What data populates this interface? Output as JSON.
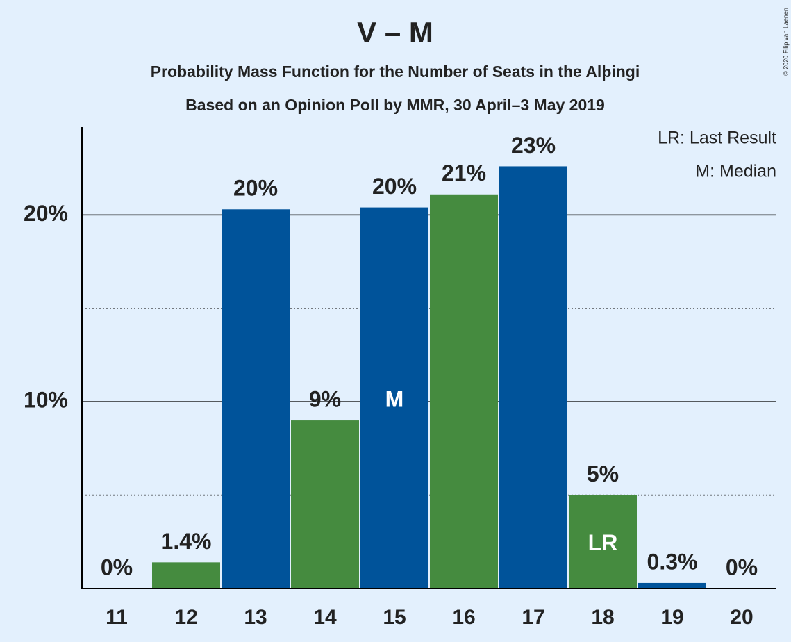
{
  "chart_data": {
    "type": "bar",
    "title": "V – M",
    "subtitle": "Probability Mass Function for the Number of Seats in the Alþingi",
    "subtitle2": "Based on an Opinion Poll by MMR, 30 April–3 May 2019",
    "categories": [
      "11",
      "12",
      "13",
      "14",
      "15",
      "16",
      "17",
      "18",
      "19",
      "20"
    ],
    "values": [
      0,
      1.4,
      20.3,
      9,
      20.4,
      21.1,
      22.6,
      5,
      0.3,
      0
    ],
    "value_labels": [
      "0%",
      "1.4%",
      "20%",
      "9%",
      "20%",
      "21%",
      "23%",
      "5%",
      "0.3%",
      "0%"
    ],
    "bar_labels": [
      null,
      null,
      null,
      null,
      "M",
      null,
      null,
      "LR",
      null,
      null
    ],
    "colors": [
      "#00539a",
      "#458b3f",
      "#00539a",
      "#458b3f",
      "#00539a",
      "#458b3f",
      "#00539a",
      "#458b3f",
      "#00539a",
      "#458b3f"
    ],
    "ylim": [
      0,
      24.7
    ],
    "yticks": [
      {
        "value": 10,
        "label": "10%"
      },
      {
        "value": 20,
        "label": "20%"
      }
    ],
    "minor_gridlines": [
      5,
      15
    ],
    "grid": true,
    "legend": [
      "LR: Last Result",
      "M: Median"
    ],
    "copyright": "© 2020 Filip van Laenen"
  }
}
